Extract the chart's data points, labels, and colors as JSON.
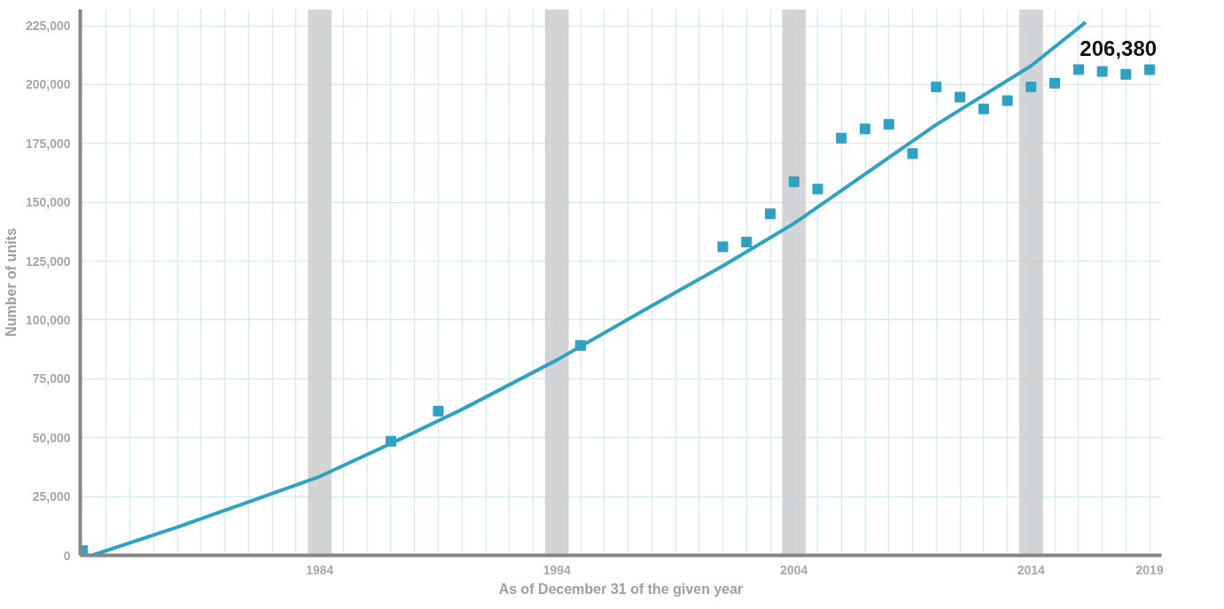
{
  "chart_data": {
    "type": "scatter",
    "xlabel": "As of December 31 of the given year",
    "ylabel": "Number of units",
    "xlim": [
      1973.9,
      2019.5
    ],
    "ylim": [
      0,
      232000
    ],
    "xticks": [
      {
        "value": 1975,
        "label": null
      },
      {
        "value": 1976,
        "label": null
      },
      {
        "value": 1977,
        "label": null
      },
      {
        "value": 1978,
        "label": null
      },
      {
        "value": 1979,
        "label": null
      },
      {
        "value": 1980,
        "label": null
      },
      {
        "value": 1981,
        "label": null
      },
      {
        "value": 1982,
        "label": null
      },
      {
        "value": 1983,
        "label": null
      },
      1984,
      {
        "value": 1985,
        "label": null
      },
      {
        "value": 1986,
        "label": null
      },
      {
        "value": 1987,
        "label": null
      },
      {
        "value": 1988,
        "label": null
      },
      {
        "value": 1989,
        "label": null
      },
      {
        "value": 1990,
        "label": null
      },
      {
        "value": 1991,
        "label": null
      },
      {
        "value": 1992,
        "label": null
      },
      {
        "value": 1993,
        "label": null
      },
      1994,
      {
        "value": 1995,
        "label": null
      },
      {
        "value": 1996,
        "label": null
      },
      {
        "value": 1997,
        "label": null
      },
      {
        "value": 1998,
        "label": null
      },
      {
        "value": 1999,
        "label": null
      },
      {
        "value": 2000,
        "label": null
      },
      {
        "value": 2001,
        "label": null
      },
      {
        "value": 2002,
        "label": null
      },
      {
        "value": 2003,
        "label": null
      },
      2004,
      {
        "value": 2005,
        "label": null
      },
      {
        "value": 2006,
        "label": null
      },
      {
        "value": 2007,
        "label": null
      },
      {
        "value": 2008,
        "label": null
      },
      {
        "value": 2009,
        "label": null
      },
      {
        "value": 2010,
        "label": null
      },
      {
        "value": 2011,
        "label": null
      },
      {
        "value": 2012,
        "label": null
      },
      {
        "value": 2013,
        "label": null
      },
      2014,
      {
        "value": 2015,
        "label": null
      },
      {
        "value": 2016,
        "label": null
      },
      {
        "value": 2017,
        "label": null
      },
      {
        "value": 2018,
        "label": null
      },
      2019
    ],
    "yticks": [
      {
        "value": 0,
        "label": "0"
      },
      {
        "value": 25000,
        "label": "25,000"
      },
      {
        "value": 50000,
        "label": "50,000"
      },
      {
        "value": 75000,
        "label": "75,000"
      },
      {
        "value": 100000,
        "label": "100,000"
      },
      {
        "value": 125000,
        "label": "125,000"
      },
      {
        "value": 150000,
        "label": "150,000"
      },
      {
        "value": 175000,
        "label": "175,000"
      },
      {
        "value": 200000,
        "label": "200,000"
      },
      {
        "value": 225000,
        "label": "225,000"
      }
    ],
    "grid": true,
    "bands": [
      {
        "axis": "x",
        "from": 1983.5,
        "to": 1984.5,
        "color": "#c8c9cc"
      },
      {
        "axis": "x",
        "from": 1993.5,
        "to": 1994.5,
        "color": "#c8c9cc"
      },
      {
        "axis": "x",
        "from": 2003.5,
        "to": 2004.5,
        "color": "#c8c9cc"
      },
      {
        "axis": "x",
        "from": 2013.5,
        "to": 2014.5,
        "color": "#c8c9cc"
      }
    ],
    "series": [
      {
        "type": "line",
        "color": "#2fa2c2",
        "line_style": "solid",
        "x": [
          1974.4,
          1978,
          1984,
          1987,
          1990,
          1994,
          1998,
          2001,
          2004,
          2007,
          2010,
          2014,
          2016.3
        ],
        "values": [
          0,
          12000,
          33500,
          47500,
          62000,
          83000,
          106000,
          123000,
          141000,
          162000,
          183000,
          208000,
          226500
        ]
      },
      {
        "type": "scatter",
        "color": "#2fa2c2",
        "marker": "square",
        "x": [
          1974,
          1987,
          1989,
          1995,
          2001,
          2002,
          2003,
          2004,
          2005,
          2006,
          2007,
          2008,
          2009,
          2010,
          2011,
          2012,
          2013,
          2014,
          2015,
          2016,
          2017,
          2018,
          2019
        ],
        "values": [
          2000,
          48500,
          61300,
          89200,
          131100,
          133100,
          145100,
          158700,
          155600,
          177300,
          181200,
          183100,
          170700,
          199000,
          194700,
          189700,
          193200,
          199000,
          200600,
          206400,
          205600,
          204400,
          206380
        ],
        "value_labels": [
          null,
          null,
          null,
          null,
          null,
          null,
          null,
          null,
          null,
          null,
          null,
          null,
          null,
          null,
          null,
          null,
          null,
          null,
          null,
          null,
          null,
          null,
          "206,380"
        ]
      }
    ]
  }
}
